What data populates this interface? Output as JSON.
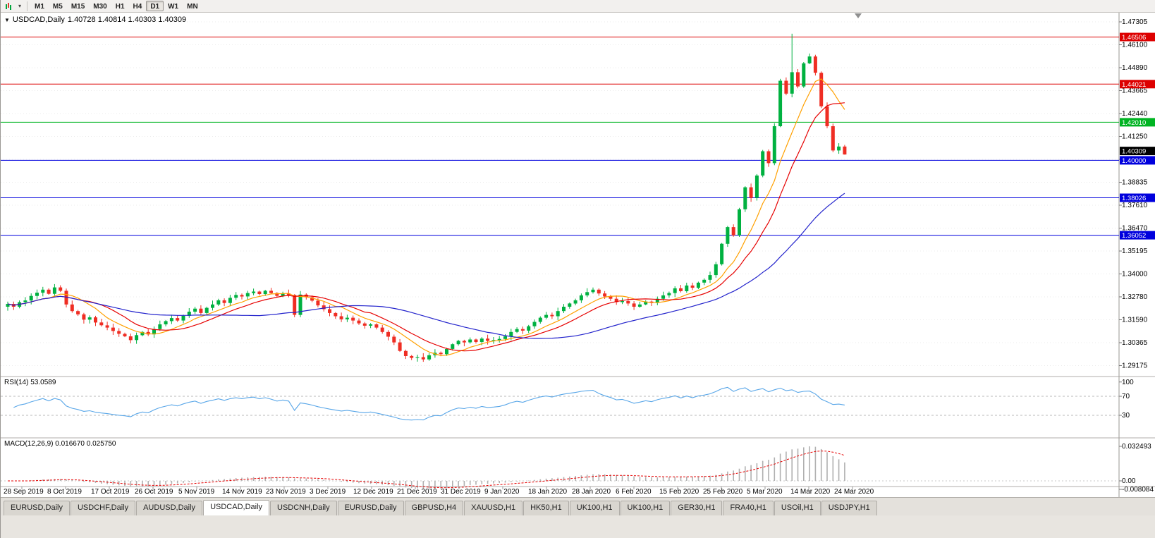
{
  "toolbar": {
    "icons": [
      {
        "name": "chart-periods-icon"
      },
      {
        "name": "dropdown-caret-icon",
        "glyph": "▾"
      }
    ],
    "timeframes": [
      {
        "label": "M1",
        "active": false
      },
      {
        "label": "M5",
        "active": false
      },
      {
        "label": "M15",
        "active": false
      },
      {
        "label": "M30",
        "active": false
      },
      {
        "label": "H1",
        "active": false
      },
      {
        "label": "H4",
        "active": false
      },
      {
        "label": "D1",
        "active": true
      },
      {
        "label": "W1",
        "active": false
      },
      {
        "label": "MN",
        "active": false
      }
    ]
  },
  "chart": {
    "title": {
      "symbol": "USDCAD,Daily",
      "ohlc": "1.40728 1.40814 1.40303 1.40309",
      "menu_glyph": "▼"
    },
    "price_axis": {
      "ticks": [
        "1.47305",
        "1.46100",
        "1.44890",
        "1.43665",
        "1.42440",
        "1.41250",
        "1.40025",
        "1.38835",
        "1.37610",
        "1.36470",
        "1.35195",
        "1.34000",
        "1.32780",
        "1.31590",
        "1.30365",
        "1.29175"
      ]
    },
    "levels": [
      {
        "price": 1.46506,
        "label": "1.46506",
        "color": "#dd0000",
        "type": "resistance"
      },
      {
        "price": 1.44021,
        "label": "1.44021",
        "color": "#dd0000",
        "type": "resistance"
      },
      {
        "price": 1.4201,
        "label": "1.42010",
        "color": "#00b422",
        "type": "pivot"
      },
      {
        "price": 1.4,
        "label": "1.40000",
        "color": "#0000dd",
        "type": "support"
      },
      {
        "price": 1.38026,
        "label": "1.38026",
        "color": "#0000dd",
        "type": "support"
      },
      {
        "price": 1.36052,
        "label": "1.36052",
        "color": "#0000dd",
        "type": "support"
      }
    ],
    "current_price": {
      "value": 1.40309,
      "label": "1.40309",
      "color": "#000000"
    },
    "dates": [
      "28 Sep 2019",
      "8 Oct 2019",
      "17 Oct 2019",
      "26 Oct 2019",
      "5 Nov 2019",
      "14 Nov 2019",
      "23 Nov 2019",
      "3 Dec 2019",
      "12 Dec 2019",
      "21 Dec 2019",
      "31 Dec 2019",
      "9 Jan 2020",
      "18 Jan 2020",
      "28 Jan 2020",
      "6 Feb 2020",
      "15 Feb 2020",
      "25 Feb 2020",
      "5 Mar 2020",
      "14 Mar 2020",
      "24 Mar 2020"
    ]
  },
  "indicators": {
    "rsi": {
      "label": "RSI(14) 53.0589",
      "axis": [
        {
          "v": 100,
          "label": "100"
        },
        {
          "v": 70,
          "label": "70"
        },
        {
          "v": 30,
          "label": "30"
        }
      ],
      "dashed_levels": [
        70,
        30
      ]
    },
    "macd": {
      "label": "MACD(12,26,9) 0.016670 0.025750",
      "axis_top": "0.032493",
      "axis_zero": "0.00",
      "axis_bottom": "-0.008084"
    }
  },
  "tabs": [
    {
      "label": "EURUSD,Daily",
      "active": false
    },
    {
      "label": "USDCHF,Daily",
      "active": false
    },
    {
      "label": "AUDUSD,Daily",
      "active": false
    },
    {
      "label": "USDCAD,Daily",
      "active": true
    },
    {
      "label": "USDCNH,Daily",
      "active": false
    },
    {
      "label": "EURUSD,Daily",
      "active": false
    },
    {
      "label": "GBPUSD,H4",
      "active": false
    },
    {
      "label": "XAUUSD,H1",
      "active": false
    },
    {
      "label": "HK50,H1",
      "active": false
    },
    {
      "label": "UK100,H1",
      "active": false
    },
    {
      "label": "UK100,H1",
      "active": false
    },
    {
      "label": "GER30,H1",
      "active": false
    },
    {
      "label": "FRA40,H1",
      "active": false
    },
    {
      "label": "USOil,H1",
      "active": false
    },
    {
      "label": "USDJPY,H1",
      "active": false
    }
  ],
  "colors": {
    "candle_up": "#00b140",
    "candle_down": "#ef2d23",
    "rsi_line": "#58a6e8",
    "macd_hist": "#b0b0b0",
    "macd_signal": "#e60000",
    "grid": "#ebebeb",
    "separator": "#b0aeab",
    "axis_text": "#000000"
  },
  "chart_data": {
    "type": "candlestick",
    "symbol": "USDCAD",
    "timeframe": "Daily",
    "x_range": [
      "28 Sep 2019",
      "1 Apr 2020"
    ],
    "y_range": [
      1.29175,
      1.47305
    ],
    "closes": [
      1.3243,
      1.3228,
      1.3252,
      1.3261,
      1.3285,
      1.3302,
      1.3318,
      1.3296,
      1.333,
      1.3312,
      1.324,
      1.3205,
      1.3188,
      1.316,
      1.3172,
      1.3145,
      1.313,
      1.3118,
      1.31,
      1.3085,
      1.3072,
      1.3052,
      1.3078,
      1.3095,
      1.3082,
      1.311,
      1.3135,
      1.3152,
      1.3168,
      1.3155,
      1.318,
      1.3202,
      1.3218,
      1.3195,
      1.3222,
      1.324,
      1.3262,
      1.3248,
      1.3275,
      1.329,
      1.3282,
      1.33,
      1.3308,
      1.3295,
      1.3312,
      1.33,
      1.3285,
      1.3298,
      1.329,
      1.3185,
      1.3292,
      1.3278,
      1.326,
      1.3235,
      1.3215,
      1.3195,
      1.3178,
      1.3162,
      1.317,
      1.3155,
      1.314,
      1.3128,
      1.3135,
      1.3118,
      1.3095,
      1.307,
      1.304,
      1.2995,
      1.2968,
      1.2958,
      1.2962,
      1.295,
      1.2972,
      1.2985,
      1.2978,
      1.3005,
      1.303,
      1.3048,
      1.304,
      1.3055,
      1.3042,
      1.306,
      1.3048,
      1.3052,
      1.3058,
      1.3072,
      1.3095,
      1.311,
      1.3102,
      1.3125,
      1.3148,
      1.317,
      1.3185,
      1.3178,
      1.3205,
      1.3228,
      1.3245,
      1.3262,
      1.3288,
      1.3305,
      1.3318,
      1.3298,
      1.3282,
      1.327,
      1.3252,
      1.3258,
      1.3245,
      1.3228,
      1.324,
      1.3255,
      1.3248,
      1.327,
      1.3288,
      1.33,
      1.3325,
      1.331,
      1.334,
      1.3328,
      1.3355,
      1.337,
      1.3395,
      1.3452,
      1.356,
      1.3648,
      1.3605,
      1.3742,
      1.3858,
      1.3802,
      1.392,
      1.4048,
      1.3985,
      1.418,
      1.442,
      1.4352,
      1.4465,
      1.439,
      1.4512,
      1.4548,
      1.4462,
      1.4285,
      1.418,
      1.4052,
      1.4073,
      1.4031
    ],
    "spike": {
      "index": 134,
      "high": 1.4668
    },
    "last_bar": {
      "open": 1.40728,
      "high": 1.40814,
      "low": 1.40303,
      "close": 1.40309
    },
    "overlays": [
      {
        "name": "ma-fast",
        "period": 8,
        "color": "#ffa000"
      },
      {
        "name": "ma-mid",
        "period": 13,
        "color": "#e60000"
      },
      {
        "name": "ma-slow",
        "period": 34,
        "color": "#2323cc"
      }
    ],
    "rsi": {
      "period": 14,
      "current": 53.0589
    },
    "macd": {
      "fast": 12,
      "slow": 26,
      "signal": 9,
      "current_main": 0.01667,
      "current_signal": 0.02575
    }
  }
}
